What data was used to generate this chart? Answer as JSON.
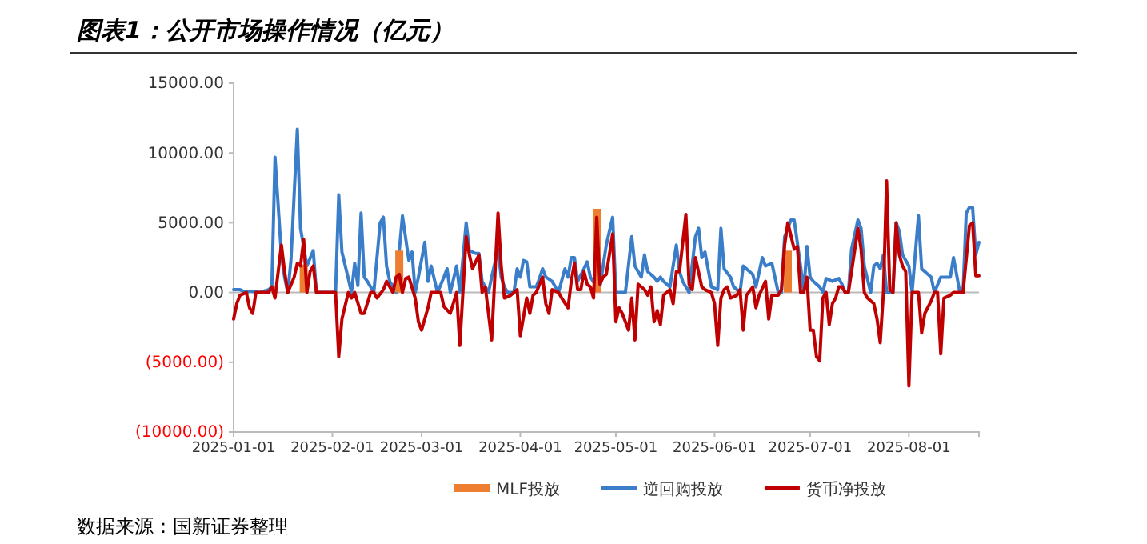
{
  "chart_data": {
    "type": "line",
    "title": "图表1：公开市场操作情况（亿元）",
    "annotations": [
      "数据来源：国新证券整理"
    ],
    "xlim": [
      "2025-01-01",
      "2025-08-23"
    ],
    "xticks": [
      "2025-01-01",
      "2025-02-01",
      "2025-03-01",
      "2025-04-01",
      "2025-05-01",
      "2025-06-01",
      "2025-07-01",
      "2025-08-01"
    ],
    "ylim": [
      -10000,
      15000
    ],
    "yticks": [
      {
        "value": -10000,
        "label": "(10000.00)"
      },
      {
        "value": -5000,
        "label": "(5000.00)"
      },
      {
        "value": 0,
        "label": "0.00"
      },
      {
        "value": 5000,
        "label": "5000.00"
      },
      {
        "value": 10000,
        "label": "10000.00"
      },
      {
        "value": 15000,
        "label": "15000.00"
      }
    ],
    "grid": false,
    "ref_lines": [
      {
        "axis": "y",
        "value": 0,
        "color": "#bbbbbb"
      }
    ],
    "legend": "bottom",
    "marker": "none",
    "line_style": "solid",
    "series": [
      {
        "name": "MLF投放",
        "type": "bar",
        "color": "#ed7d31",
        "x": [
          "2025-01-23",
          "2025-02-22",
          "2025-04-25",
          "2025-06-24"
        ],
        "values": [
          2000,
          3000,
          6000,
          3000
        ]
      },
      {
        "name": "逆回购投放",
        "color": "#3a7dc9",
        "x": [
          "2025-01-01",
          "2025-01-03",
          "2025-01-05",
          "2025-01-06",
          "2025-01-09",
          "2025-01-12",
          "2025-01-13",
          "2025-01-14",
          "2025-01-16",
          "2025-01-17",
          "2025-01-18",
          "2025-01-19",
          "2025-01-21",
          "2025-01-22",
          "2025-01-24",
          "2025-01-26",
          "2025-01-27",
          "2025-02-02",
          "2025-02-03",
          "2025-02-04",
          "2025-02-06",
          "2025-02-07",
          "2025-02-08",
          "2025-02-09",
          "2025-02-10",
          "2025-02-11",
          "2025-02-12",
          "2025-02-14",
          "2025-02-16",
          "2025-02-17",
          "2025-02-18",
          "2025-02-19",
          "2025-02-21",
          "2025-02-22",
          "2025-02-23",
          "2025-02-25",
          "2025-02-26",
          "2025-02-27",
          "2025-02-28",
          "2025-03-02",
          "2025-03-03",
          "2025-03-04",
          "2025-03-06",
          "2025-03-08",
          "2025-03-09",
          "2025-03-10",
          "2025-03-12",
          "2025-03-13",
          "2025-03-15",
          "2025-03-16",
          "2025-03-18",
          "2025-03-19",
          "2025-03-20",
          "2025-03-22",
          "2025-03-23",
          "2025-03-25",
          "2025-03-26",
          "2025-03-27",
          "2025-03-28",
          "2025-03-30",
          "2025-03-31",
          "2025-04-01",
          "2025-04-02",
          "2025-04-03",
          "2025-04-04",
          "2025-04-06",
          "2025-04-07",
          "2025-04-08",
          "2025-04-09",
          "2025-04-11",
          "2025-04-12",
          "2025-04-13",
          "2025-04-15",
          "2025-04-16",
          "2025-04-17",
          "2025-04-18",
          "2025-04-19",
          "2025-04-21",
          "2025-04-22",
          "2025-04-23",
          "2025-04-25",
          "2025-04-26",
          "2025-04-28",
          "2025-04-30",
          "2025-05-01",
          "2025-05-04",
          "2025-05-06",
          "2025-05-07",
          "2025-05-09",
          "2025-05-10",
          "2025-05-11",
          "2025-05-13",
          "2025-05-14",
          "2025-05-15",
          "2025-05-16",
          "2025-05-18",
          "2025-05-20",
          "2025-05-21",
          "2025-05-22",
          "2025-05-24",
          "2025-05-26",
          "2025-05-27",
          "2025-05-28",
          "2025-05-29",
          "2025-05-31",
          "2025-06-02",
          "2025-06-03",
          "2025-06-04",
          "2025-06-06",
          "2025-06-07",
          "2025-06-09",
          "2025-06-10",
          "2025-06-11",
          "2025-06-13",
          "2025-06-14",
          "2025-06-16",
          "2025-06-17",
          "2025-06-19",
          "2025-06-21",
          "2025-06-22",
          "2025-06-23",
          "2025-06-25",
          "2025-06-26",
          "2025-06-28",
          "2025-06-29",
          "2025-06-30",
          "2025-07-01",
          "2025-07-02",
          "2025-07-04",
          "2025-07-05",
          "2025-07-06",
          "2025-07-08",
          "2025-07-10",
          "2025-07-11",
          "2025-07-12",
          "2025-07-13",
          "2025-07-14",
          "2025-07-16",
          "2025-07-17",
          "2025-07-18",
          "2025-07-20",
          "2025-07-21",
          "2025-07-22",
          "2025-07-23",
          "2025-07-24",
          "2025-07-25",
          "2025-07-27",
          "2025-07-28",
          "2025-07-29",
          "2025-07-30",
          "2025-08-01",
          "2025-08-02",
          "2025-08-04",
          "2025-08-05",
          "2025-08-06",
          "2025-08-08",
          "2025-08-09",
          "2025-08-11",
          "2025-08-12",
          "2025-08-14",
          "2025-08-15",
          "2025-08-17",
          "2025-08-18",
          "2025-08-19",
          "2025-08-20",
          "2025-08-21",
          "2025-08-22",
          "2025-08-23"
        ],
        "values": [
          200,
          200,
          0,
          100,
          0,
          200,
          400,
          9700,
          2700,
          1100,
          0,
          2300,
          11700,
          4600,
          1900,
          3000,
          0,
          0,
          7000,
          2900,
          1000,
          0,
          2100,
          500,
          5700,
          1100,
          800,
          0,
          5000,
          5400,
          1900,
          800,
          0,
          3000,
          5500,
          2300,
          2900,
          0,
          1100,
          3600,
          800,
          1900,
          0,
          1100,
          1700,
          0,
          1900,
          0,
          5000,
          3000,
          2800,
          2800,
          800,
          0,
          1100,
          3100,
          1100,
          400,
          0,
          0,
          1700,
          1100,
          2300,
          2200,
          400,
          400,
          1000,
          1700,
          1100,
          800,
          400,
          0,
          1700,
          1100,
          2500,
          2500,
          800,
          1700,
          2200,
          1100,
          400,
          400,
          3400,
          5400,
          0,
          0,
          4000,
          1900,
          1100,
          2700,
          1500,
          1100,
          800,
          1100,
          800,
          400,
          3400,
          1500,
          800,
          0,
          4000,
          4600,
          2500,
          2900,
          400,
          200,
          4600,
          1700,
          1100,
          400,
          0,
          1900,
          1700,
          1300,
          400,
          2500,
          1900,
          2100,
          0,
          0,
          4000,
          5200,
          5200,
          1900,
          0,
          3300,
          1100,
          800,
          400,
          0,
          1000,
          800,
          1000,
          600,
          0,
          0,
          3100,
          5200,
          4600,
          1900,
          0,
          1900,
          2100,
          1700,
          2700,
          0,
          0,
          5000,
          4400,
          2700,
          1900,
          0,
          5500,
          1700,
          1500,
          1100,
          0,
          1100,
          1100,
          1100,
          2500,
          0,
          0,
          5700,
          6100,
          6100,
          2700,
          3600
        ]
      },
      {
        "name": "货币净投放",
        "color": "#c00000",
        "x": [
          "2025-01-01",
          "2025-01-02",
          "2025-01-03",
          "2025-01-05",
          "2025-01-06",
          "2025-01-07",
          "2025-01-08",
          "2025-01-12",
          "2025-01-13",
          "2025-01-14",
          "2025-01-16",
          "2025-01-17",
          "2025-01-18",
          "2025-01-20",
          "2025-01-21",
          "2025-01-22",
          "2025-01-23",
          "2025-01-24",
          "2025-01-25",
          "2025-01-26",
          "2025-01-27",
          "2025-02-02",
          "2025-02-03",
          "2025-02-04",
          "2025-02-06",
          "2025-02-07",
          "2025-02-08",
          "2025-02-10",
          "2025-02-11",
          "2025-02-13",
          "2025-02-14",
          "2025-02-15",
          "2025-02-17",
          "2025-02-18",
          "2025-02-19",
          "2025-02-20",
          "2025-02-21",
          "2025-02-22",
          "2025-02-23",
          "2025-02-24",
          "2025-02-25",
          "2025-02-27",
          "2025-02-28",
          "2025-03-01",
          "2025-03-03",
          "2025-03-04",
          "2025-03-07",
          "2025-03-08",
          "2025-03-10",
          "2025-03-12",
          "2025-03-13",
          "2025-03-15",
          "2025-03-16",
          "2025-03-17",
          "2025-03-19",
          "2025-03-20",
          "2025-03-21",
          "2025-03-23",
          "2025-03-25",
          "2025-03-26",
          "2025-03-27",
          "2025-03-29",
          "2025-03-30",
          "2025-03-31",
          "2025-04-01",
          "2025-04-03",
          "2025-04-04",
          "2025-04-05",
          "2025-04-06",
          "2025-04-08",
          "2025-04-09",
          "2025-04-10",
          "2025-04-11",
          "2025-04-13",
          "2025-04-14",
          "2025-04-16",
          "2025-04-17",
          "2025-04-18",
          "2025-04-19",
          "2025-04-20",
          "2025-04-21",
          "2025-04-22",
          "2025-04-23",
          "2025-04-24",
          "2025-04-25",
          "2025-04-26",
          "2025-04-27",
          "2025-04-28",
          "2025-04-30",
          "2025-05-01",
          "2025-05-02",
          "2025-05-03",
          "2025-05-05",
          "2025-05-06",
          "2025-05-07",
          "2025-05-08",
          "2025-05-10",
          "2025-05-11",
          "2025-05-12",
          "2025-05-13",
          "2025-05-14",
          "2025-05-15",
          "2025-05-16",
          "2025-05-18",
          "2025-05-19",
          "2025-05-20",
          "2025-05-21",
          "2025-05-23",
          "2025-05-24",
          "2025-05-25",
          "2025-05-26",
          "2025-05-28",
          "2025-05-29",
          "2025-05-31",
          "2025-06-01",
          "2025-06-02",
          "2025-06-03",
          "2025-06-04",
          "2025-06-05",
          "2025-06-06",
          "2025-06-08",
          "2025-06-09",
          "2025-06-10",
          "2025-06-11",
          "2025-06-13",
          "2025-06-14",
          "2025-06-15",
          "2025-06-17",
          "2025-06-18",
          "2025-06-19",
          "2025-06-20",
          "2025-06-21",
          "2025-06-22",
          "2025-06-23",
          "2025-06-24",
          "2025-06-26",
          "2025-06-27",
          "2025-06-28",
          "2025-06-29",
          "2025-06-30",
          "2025-07-01",
          "2025-07-02",
          "2025-07-03",
          "2025-07-04",
          "2025-07-05",
          "2025-07-06",
          "2025-07-07",
          "2025-07-08",
          "2025-07-09",
          "2025-07-10",
          "2025-07-11",
          "2025-07-12",
          "2025-07-13",
          "2025-07-14",
          "2025-07-16",
          "2025-07-17",
          "2025-07-18",
          "2025-07-19",
          "2025-07-21",
          "2025-07-22",
          "2025-07-23",
          "2025-07-24",
          "2025-07-25",
          "2025-07-26",
          "2025-07-27",
          "2025-07-28",
          "2025-07-29",
          "2025-07-30",
          "2025-07-31",
          "2025-08-01",
          "2025-08-02",
          "2025-08-03",
          "2025-08-04",
          "2025-08-05",
          "2025-08-06",
          "2025-08-08",
          "2025-08-09",
          "2025-08-10",
          "2025-08-11",
          "2025-08-12",
          "2025-08-14",
          "2025-08-15",
          "2025-08-17",
          "2025-08-18",
          "2025-08-20",
          "2025-08-21",
          "2025-08-22",
          "2025-08-23"
        ],
        "values": [
          -1900,
          -800,
          -200,
          0,
          -1100,
          -1500,
          0,
          0,
          400,
          -400,
          3400,
          1500,
          0,
          1100,
          2100,
          1900,
          3800,
          0,
          1500,
          1900,
          0,
          0,
          -4600,
          -1900,
          0,
          -400,
          0,
          -1500,
          -1500,
          0,
          0,
          -400,
          200,
          800,
          400,
          0,
          1100,
          1300,
          0,
          1000,
          1100,
          -400,
          -2100,
          -2700,
          -1100,
          0,
          0,
          -1000,
          -1500,
          0,
          -3800,
          4000,
          2700,
          1700,
          2700,
          0,
          400,
          -3400,
          5700,
          1900,
          -400,
          -200,
          0,
          200,
          -3100,
          -400,
          -1500,
          -200,
          0,
          1100,
          -800,
          -1500,
          200,
          0,
          -400,
          -1100,
          800,
          2100,
          200,
          200,
          1500,
          600,
          400,
          -400,
          5400,
          600,
          1100,
          1300,
          4200,
          -2100,
          -1100,
          -1500,
          -2700,
          -400,
          -3400,
          600,
          200,
          -200,
          400,
          -2100,
          -1300,
          -2300,
          -200,
          200,
          -800,
          1500,
          1500,
          5600,
          600,
          200,
          2500,
          400,
          200,
          0,
          -800,
          -3800,
          -400,
          200,
          400,
          -400,
          -200,
          200,
          -2700,
          -200,
          400,
          -1100,
          -200,
          800,
          -1900,
          -200,
          -200,
          -200,
          200,
          3400,
          5000,
          3100,
          3300,
          0,
          0,
          1100,
          -2700,
          -2700,
          -4600,
          -4900,
          -400,
          0,
          -2300,
          -800,
          -400,
          400,
          400,
          0,
          0,
          1500,
          4600,
          3100,
          0,
          -400,
          -800,
          -1900,
          -3600,
          0,
          8000,
          200,
          0,
          5000,
          2700,
          1900,
          1500,
          -6700,
          0,
          0,
          0,
          -2900,
          -1500,
          -600,
          0,
          0,
          -4400,
          -400,
          -200,
          0,
          0,
          0,
          4800,
          5000,
          1200,
          1200
        ]
      }
    ]
  }
}
